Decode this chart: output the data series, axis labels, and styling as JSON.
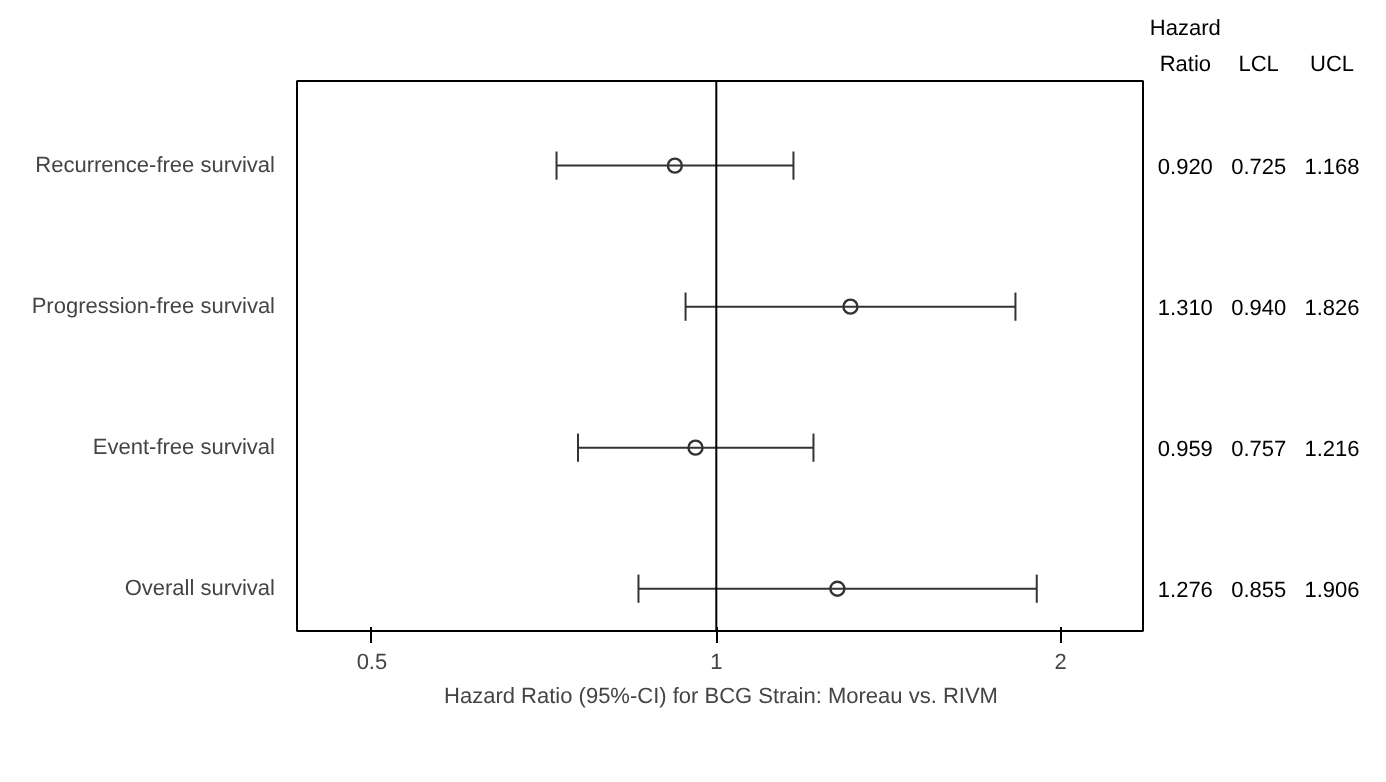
{
  "chart_data": {
    "type": "scatter",
    "orientation": "horizontal",
    "log": "x",
    "categories": [
      "Recurrence-free survival",
      "Progression-free survival",
      "Event-free survival",
      "Overall survival"
    ],
    "values": [
      0.92,
      1.31,
      0.959,
      1.276
    ],
    "value_labels": [
      "0.920",
      "1.310",
      "0.959",
      "1.276"
    ],
    "errors": [
      [
        0.725,
        1.168
      ],
      [
        0.94,
        1.826
      ],
      [
        0.757,
        1.216
      ],
      [
        0.855,
        1.906
      ]
    ],
    "xlim": [
      0.43,
      2.37
    ],
    "xticks": [
      0.5,
      1,
      2
    ],
    "xlabel": "Hazard Ratio (95%-CI) for BCG Strain: Moreau vs. RIVM",
    "ref_lines": [
      {
        "axis": "x",
        "value": 1,
        "color": "#000000"
      }
    ],
    "color": "#333333",
    "marker": "circle",
    "grid": false,
    "annotations": [
      "Hazard Ratio",
      "LCL",
      "UCL",
      "0.725",
      "1.168",
      "0.940",
      "1.826",
      "0.757",
      "1.216",
      "0.855",
      "1.906"
    ]
  }
}
